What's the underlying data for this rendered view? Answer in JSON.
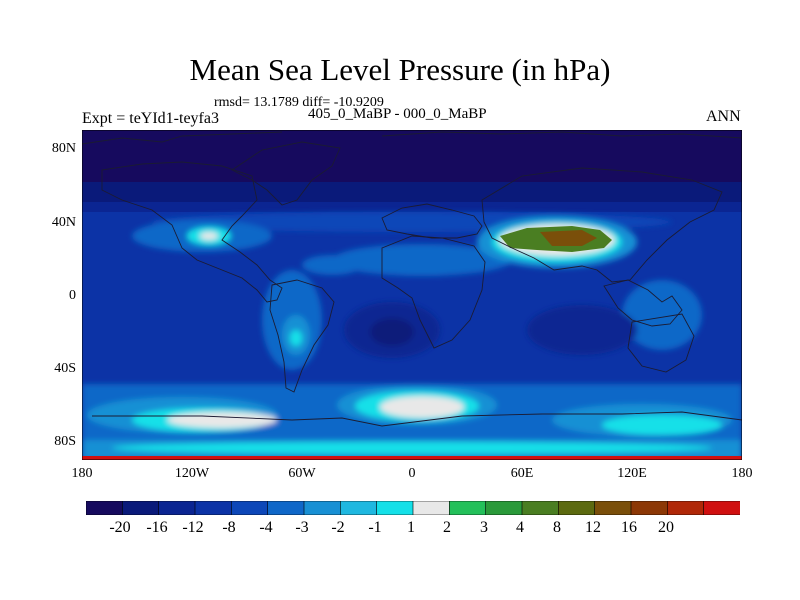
{
  "title": "Mean Sea Level Pressure (in hPa)",
  "stats": "rmsd= 13.1789 diff= -10.9209",
  "subtitle": "405_0_MaBP - 000_0_MaBP",
  "experiment": "Expt = teYId1-teyfa3",
  "season": "ANN",
  "lat_labels": [
    "80N",
    "40N",
    "0",
    "40S",
    "80S"
  ],
  "lon_labels": [
    "180",
    "120W",
    "60W",
    "0",
    "60E",
    "120E",
    "180"
  ],
  "colorbar": {
    "colors": [
      "#160a5e",
      "#0a1a7a",
      "#0b2592",
      "#0c33a6",
      "#0d47b8",
      "#0f67c8",
      "#1890d4",
      "#1fb8e0",
      "#14e0e8",
      "#e8e8e8",
      "#23c05a",
      "#2a9a3a",
      "#4a7e22",
      "#5c6a10",
      "#7a4f0a",
      "#8c3806",
      "#b02808",
      "#d01010"
    ],
    "labels": [
      "-20",
      "-16",
      "-12",
      "-8",
      "-4",
      "-3",
      "-2",
      "-1",
      "1",
      "2",
      "3",
      "4",
      "8",
      "12",
      "16",
      "20"
    ]
  }
}
